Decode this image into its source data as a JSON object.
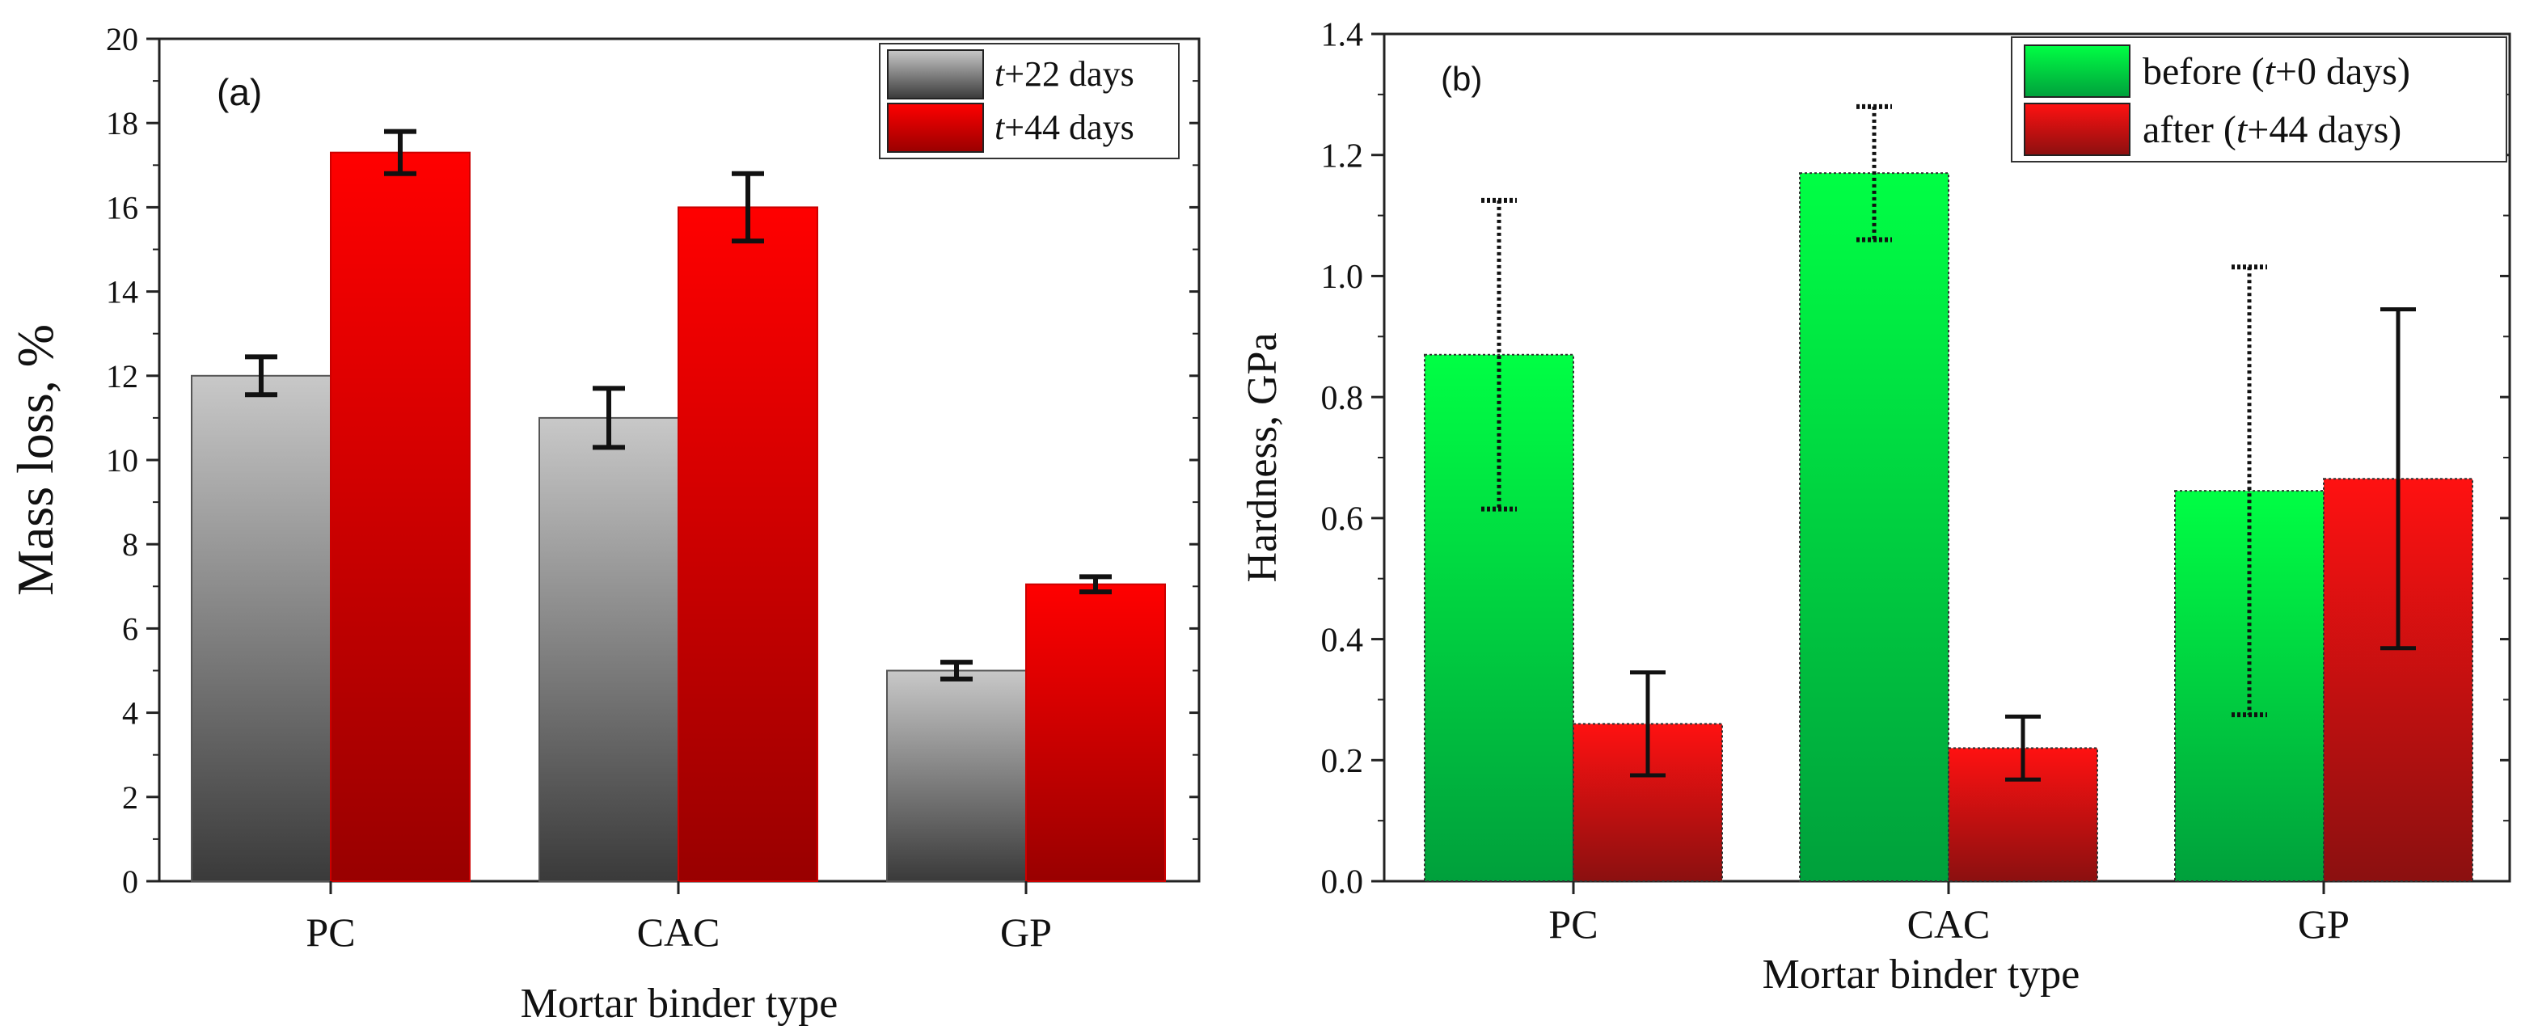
{
  "chart_data": [
    {
      "type": "bar",
      "panel_label": "(a)",
      "categories": [
        "PC",
        "CAC",
        "GP"
      ],
      "series": [
        {
          "name_prefix": "t",
          "name_suffix": "+22 days",
          "values": [
            12.0,
            11.0,
            5.0
          ],
          "errors": [
            0.45,
            0.7,
            0.2
          ],
          "color_top": "#c8c8c8",
          "color_bottom": "#3a3a3a"
        },
        {
          "name_prefix": "t",
          "name_suffix": "+44 days",
          "values": [
            17.3,
            16.0,
            7.05
          ],
          "errors": [
            0.5,
            0.8,
            0.18
          ],
          "color_top": "#ff0000",
          "color_bottom": "#990000"
        }
      ],
      "xlabel": "Mortar binder type",
      "ylabel": "Mass loss, %",
      "ylim": [
        0,
        20
      ],
      "yticks": [
        "0",
        "2",
        "4",
        "6",
        "8",
        "10",
        "12",
        "14",
        "16",
        "18",
        "20"
      ],
      "legend_position": "top-right",
      "grid": false
    },
    {
      "type": "bar",
      "panel_label": "(b)",
      "categories": [
        "PC",
        "CAC",
        "GP"
      ],
      "series": [
        {
          "name_before": "before (",
          "name_prefix": "t",
          "name_suffix": "+0 days)",
          "values": [
            0.87,
            1.17,
            0.645
          ],
          "errors": [
            0.255,
            0.11,
            0.37
          ],
          "color_top": "#00ff44",
          "color_bottom": "#00a03c"
        },
        {
          "name_before": "after (",
          "name_prefix": "t",
          "name_suffix": "+44 days)",
          "values": [
            0.26,
            0.22,
            0.665
          ],
          "errors": [
            0.085,
            0.052,
            0.28
          ],
          "color_top": "#ff1111",
          "color_bottom": "#8b1010"
        }
      ],
      "xlabel": "Mortar binder type",
      "ylabel": "Hardness, GPa",
      "ylim": [
        0,
        1.4
      ],
      "yticks": [
        "0.0",
        "0.2",
        "0.4",
        "0.6",
        "0.8",
        "1.0",
        "1.2",
        "1.4"
      ],
      "legend_position": "top-right",
      "grid": false
    }
  ]
}
